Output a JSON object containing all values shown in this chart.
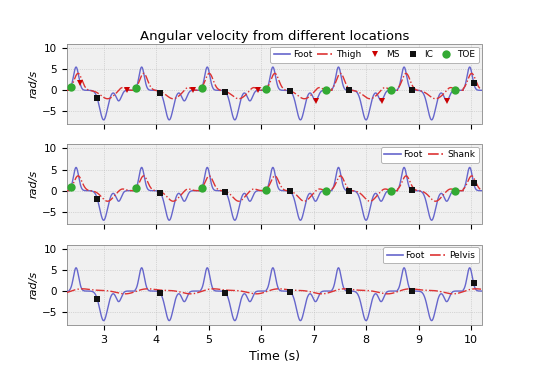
{
  "title": "Angular velocity from different locations",
  "xlabel": "Time (s)",
  "ylabel": "rad/s",
  "xlim": [
    2.3,
    10.2
  ],
  "ylim": [
    -8,
    11
  ],
  "xticks": [
    3,
    4,
    5,
    6,
    7,
    8,
    9,
    10
  ],
  "yticks": [
    -5,
    0,
    5,
    10
  ],
  "foot_color": "#6666cc",
  "dash_color": "#dd3333",
  "foot_linewidth": 1.0,
  "other_linewidth": 1.0,
  "background_color": "#f0f0f0",
  "grid_color": "#bbbbbb",
  "ms_color": "#cc0000",
  "ic_color": "#111111",
  "toe_color": "#33aa33",
  "period": 1.25,
  "start_time": 2.35,
  "ms_times": [
    2.55,
    3.45,
    4.7,
    5.95,
    7.05,
    8.3,
    9.55
  ],
  "ic_times": [
    2.88,
    4.08,
    5.32,
    6.55,
    7.68,
    8.88,
    10.05
  ],
  "toe_times": [
    2.38,
    3.62,
    4.87,
    6.1,
    7.23,
    8.47,
    9.7
  ],
  "subplots": [
    {
      "label": "Thigh",
      "show_ms": true,
      "show_ic": true,
      "show_toe": true
    },
    {
      "label": "Shank",
      "show_ms": false,
      "show_ic": true,
      "show_toe": true
    },
    {
      "label": "Pelvis",
      "show_ms": false,
      "show_ic": true,
      "show_toe": false
    }
  ]
}
